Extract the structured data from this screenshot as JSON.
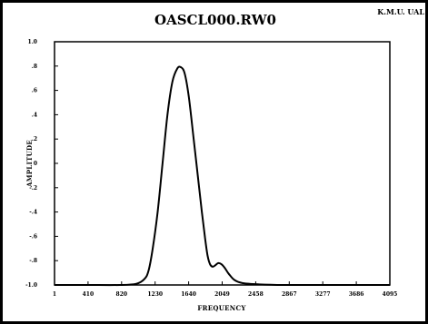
{
  "header": {
    "title": "OASCL000.RW0",
    "corner_label": "K.M.U. UAL"
  },
  "chart_data": {
    "type": "line",
    "title": "OASCL000.RW0",
    "xlabel": "FREQUENCY",
    "ylabel": "AMPLITUDE",
    "x_tick_labels": [
      "1",
      "410",
      "820",
      "1230",
      "1640",
      "2049",
      "2458",
      "2867",
      "3277",
      "3686",
      "4095"
    ],
    "y_tick_labels": [
      "1.0",
      ".8",
      ".6",
      ".4",
      ".2",
      "0",
      "-.2",
      "-.4",
      "-.6",
      "-.8",
      "-1.0"
    ],
    "xlim": [
      1,
      4095
    ],
    "ylim": [
      -1.0,
      1.0
    ],
    "grid": false,
    "series": [
      {
        "color": "#000000",
        "x": [
          1,
          400,
          800,
          1000,
          1100,
          1150,
          1200,
          1260,
          1320,
          1380,
          1440,
          1500,
          1545,
          1590,
          1640,
          1700,
          1750,
          1800,
          1840,
          1870,
          1900,
          1930,
          1960,
          2000,
          2040,
          2080,
          2130,
          2200,
          2300,
          2500,
          2800,
          3300,
          4095
        ],
        "y": [
          -1.0,
          -1.0,
          -1.0,
          -0.99,
          -0.95,
          -0.88,
          -0.7,
          -0.4,
          0.0,
          0.4,
          0.67,
          0.78,
          0.79,
          0.74,
          0.55,
          0.2,
          -0.1,
          -0.4,
          -0.62,
          -0.76,
          -0.83,
          -0.85,
          -0.84,
          -0.82,
          -0.83,
          -0.86,
          -0.91,
          -0.96,
          -0.985,
          -0.995,
          -1.0,
          -1.0,
          -1.0
        ]
      }
    ]
  }
}
